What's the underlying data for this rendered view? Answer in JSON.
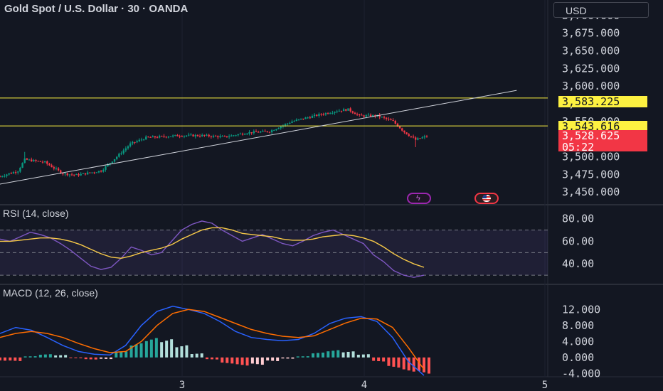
{
  "chart": {
    "title": "Gold Spot / U.S. Dollar · 30 · OANDA",
    "currency": "USD"
  },
  "chart_data": [
    {
      "type": "candlestick",
      "title": "Gold Spot / U.S. Dollar · 30 · OANDA",
      "yticks": [
        "3,700.000",
        "3,675.000",
        "3,650.000",
        "3,625.000",
        "3,600.000",
        "3,575.000",
        "3,550.000",
        "3,500.000",
        "3,475.000",
        "3,450.000"
      ],
      "ylim": [
        3440,
        3712
      ],
      "x_ticks": [
        "3",
        "4",
        "5"
      ],
      "price_key_points": [
        {
          "t": 0,
          "v": 3472
        },
        {
          "t": 8,
          "v": 3480
        },
        {
          "t": 11,
          "v": 3496
        },
        {
          "t": 20,
          "v": 3492
        },
        {
          "t": 28,
          "v": 3476
        },
        {
          "t": 34,
          "v": 3474
        },
        {
          "t": 45,
          "v": 3480
        },
        {
          "t": 52,
          "v": 3500
        },
        {
          "t": 58,
          "v": 3518
        },
        {
          "t": 65,
          "v": 3527
        },
        {
          "t": 80,
          "v": 3530
        },
        {
          "t": 90,
          "v": 3530
        },
        {
          "t": 100,
          "v": 3528
        },
        {
          "t": 110,
          "v": 3534
        },
        {
          "t": 120,
          "v": 3536
        },
        {
          "t": 130,
          "v": 3550
        },
        {
          "t": 140,
          "v": 3558
        },
        {
          "t": 150,
          "v": 3565
        },
        {
          "t": 155,
          "v": 3567
        },
        {
          "t": 160,
          "v": 3558
        },
        {
          "t": 168,
          "v": 3558
        },
        {
          "t": 175,
          "v": 3550
        },
        {
          "t": 180,
          "v": 3535
        },
        {
          "t": 185,
          "v": 3524
        },
        {
          "t": 190,
          "v": 3529
        }
      ],
      "levels": [
        {
          "label": "3,583.225",
          "value": 3583.225
        },
        {
          "label": "3,543.616",
          "value": 3543.616
        }
      ],
      "last_price": {
        "label": "3,528.625",
        "countdown": "05:22"
      },
      "trendline": {
        "from": {
          "t": -2,
          "v": 3460
        },
        "to": {
          "t": 230,
          "v": 3594
        }
      }
    },
    {
      "type": "line",
      "title": "RSI (14, close)",
      "yticks": [
        "80.00",
        "60.00",
        "40.00"
      ],
      "ylim": [
        25,
        88
      ],
      "band": [
        30,
        70
      ],
      "series": [
        {
          "name": "RSI",
          "color": "#7e57c2",
          "values": [
            62,
            60,
            64,
            68,
            66,
            63,
            58,
            52,
            45,
            38,
            35,
            37,
            45,
            55,
            52,
            48,
            50,
            60,
            70,
            75,
            78,
            76,
            70,
            65,
            60,
            63,
            66,
            62,
            58,
            56,
            60,
            65,
            68,
            70,
            66,
            62,
            58,
            48,
            42,
            34,
            30,
            28,
            30
          ]
        },
        {
          "name": "RSI-based MA",
          "color": "#f7c948",
          "values": [
            60,
            60,
            61,
            62,
            63,
            63,
            62,
            60,
            57,
            53,
            49,
            46,
            45,
            47,
            50,
            52,
            54,
            57,
            62,
            66,
            70,
            72,
            72,
            70,
            67,
            66,
            65,
            64,
            62,
            61,
            61,
            62,
            64,
            65,
            66,
            65,
            63,
            60,
            55,
            49,
            44,
            40,
            37
          ]
        }
      ]
    },
    {
      "type": "line",
      "title": "MACD (12, 26, close)",
      "yticks": [
        "12.000",
        "8.000",
        "4.000",
        "0.000",
        "-4.000"
      ],
      "ylim": [
        -4.3,
        14
      ],
      "series": [
        {
          "name": "MACD",
          "color": "#2962ff",
          "values": [
            6,
            7.5,
            6.8,
            5,
            3,
            1.5,
            0.8,
            0.6,
            3,
            8,
            11.5,
            12.8,
            12,
            11,
            9,
            6.5,
            5,
            4.5,
            4.2,
            4.5,
            6,
            8.5,
            9.8,
            10.2,
            9,
            5,
            -1,
            -4.5
          ]
        },
        {
          "name": "Signal",
          "color": "#ff6d00",
          "values": [
            5,
            6,
            6.5,
            6,
            5,
            3.5,
            2.2,
            1.2,
            1.5,
            4,
            8,
            11,
            12,
            11.5,
            10,
            8.5,
            7,
            6,
            5.3,
            5,
            5.4,
            7,
            8.6,
            9.8,
            9.6,
            7.5,
            2.5,
            -3
          ]
        },
        {
          "name": "Histogram",
          "values": [
            -0.8,
            -0.9,
            0.3,
            0.8,
            0.6,
            -0.2,
            -0.5,
            -0.4,
            1.5,
            3.5,
            4.8,
            4.5,
            3,
            1,
            -0.5,
            -1.5,
            -2,
            -1.8,
            -0.9,
            -0.3,
            0.3,
            1.2,
            1.8,
            1.5,
            0.8,
            -1,
            -2.5,
            -3.5,
            -4
          ]
        }
      ]
    }
  ],
  "indicators": {
    "rsi_label": "RSI (14, close)",
    "macd_label": "MACD (12, 26, close)"
  }
}
